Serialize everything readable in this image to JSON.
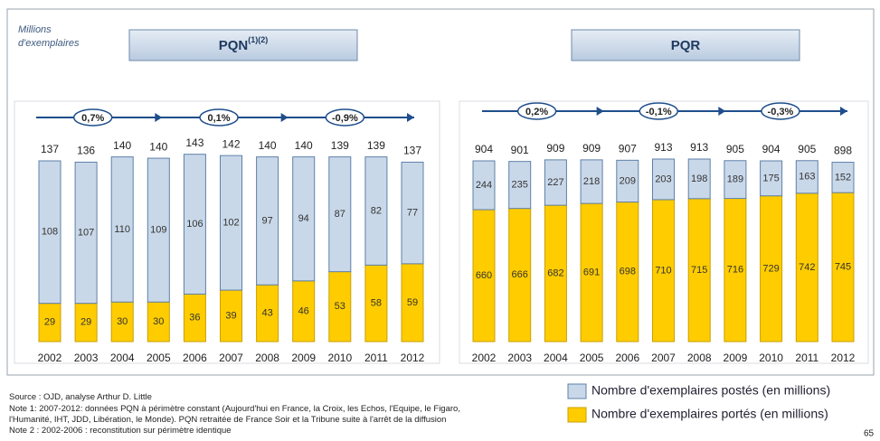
{
  "unit_label": [
    "Millions",
    "d'exemplaires"
  ],
  "chart_data": [
    {
      "type": "bar",
      "stacked": true,
      "title": "PQN",
      "title_note": "(1)(2)",
      "categories": [
        "2002",
        "2003",
        "2004",
        "2005",
        "2006",
        "2007",
        "2008",
        "2009",
        "2010",
        "2011",
        "2012"
      ],
      "series": [
        {
          "name": "Nombre d'exemplaires postés (en millions)",
          "color": "#c9d8e9",
          "values": [
            108,
            107,
            110,
            109,
            106,
            102,
            97,
            94,
            87,
            82,
            77
          ]
        },
        {
          "name": "Nombre d'exemplaires portés (en millions)",
          "color": "#ffcc00",
          "values": [
            29,
            29,
            30,
            30,
            36,
            39,
            43,
            46,
            53,
            58,
            59
          ]
        }
      ],
      "totals": [
        137,
        136,
        140,
        140,
        143,
        142,
        140,
        140,
        139,
        139,
        137
      ],
      "annotations": [
        "0,7%",
        "0,1%",
        "-0,9%"
      ],
      "ylim": [
        0,
        137
      ]
    },
    {
      "type": "bar",
      "stacked": true,
      "title": "PQR",
      "categories": [
        "2002",
        "2003",
        "2004",
        "2005",
        "2006",
        "2007",
        "2008",
        "2009",
        "2010",
        "2011",
        "2012"
      ],
      "series": [
        {
          "color": "#c9d8e9",
          "values": [
            244,
            235,
            227,
            218,
            209,
            203,
            198,
            189,
            175,
            163,
            152
          ]
        },
        {
          "color": "#ffcc00",
          "values": [
            660,
            666,
            682,
            691,
            698,
            710,
            715,
            716,
            729,
            742,
            745
          ]
        }
      ],
      "totals": [
        904,
        901,
        909,
        909,
        907,
        913,
        913,
        905,
        904,
        905,
        898
      ],
      "annotations": [
        "0,2%",
        "-0,1%",
        "-0,3%"
      ],
      "ylim": [
        0,
        904
      ]
    }
  ],
  "notes": [
    "Source : OJD, analyse Arthur D. Little",
    "Note 1: 2007-2012: données PQN à périmètre constant (Aujourd'hui en France, la Croix, les Echos, l'Equipe, le Figaro,",
    "l'Humanité, IHT, JDD, Libération, le Monde). PQN retraitée de France Soir et la Tribune suite à l'arrêt de la diffusion",
    "Note 2 : 2002-2006 : reconstitution sur périmètre identique"
  ],
  "page_number": "65"
}
